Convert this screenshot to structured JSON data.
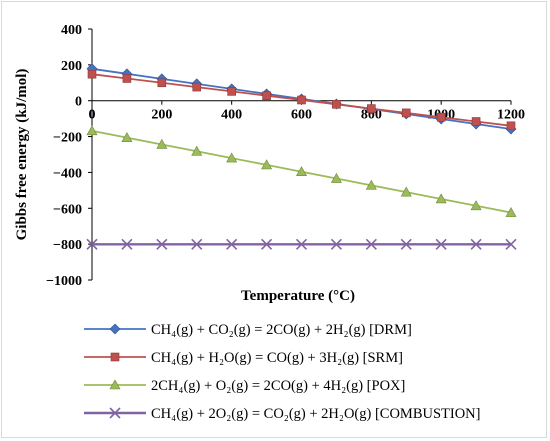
{
  "chart_data": {
    "type": "line",
    "title": "",
    "xlabel": "Temperature (°C)",
    "ylabel": "Gibbs free energy (kJ/mol)",
    "xlim": [
      0,
      1200
    ],
    "ylim": [
      -1000,
      400
    ],
    "x_ticks": [
      "0",
      "200",
      "400",
      "600",
      "800",
      "1000",
      "1200"
    ],
    "y_ticks": [
      "400",
      "200",
      "0",
      "−200",
      "−400",
      "−600",
      "−800",
      "−1000"
    ],
    "grid": false,
    "legend_position": "bottom",
    "x": [
      0,
      100,
      200,
      300,
      400,
      500,
      600,
      700,
      800,
      900,
      1000,
      1100,
      1200
    ],
    "series": [
      {
        "name": "CH₄(g) + CO₂(g) = 2CO(g) + 2H₂(g) [DRM]",
        "color": "#4472c4",
        "marker": "diamond",
        "values": [
          178,
          150,
          122,
          94,
          66,
          38,
          10,
          -18,
          -46,
          -74,
          -102,
          -130,
          -158
        ]
      },
      {
        "name": "CH₄(g) + H₂O(g) = CO(g) + 3H₂(g) [SRM]",
        "color": "#c0504d",
        "marker": "square",
        "values": [
          148,
          124,
          100,
          76,
          52,
          28,
          4,
          -20,
          -44,
          -68,
          -92,
          -116,
          -140
        ]
      },
      {
        "name": "2CH₄(g) + O₂(g) = 2CO(g) + 4H₂(g) [POX]",
        "color": "#9bbb59",
        "marker": "triangle",
        "values": [
          -168,
          -206,
          -244,
          -282,
          -320,
          -358,
          -396,
          -434,
          -472,
          -510,
          -548,
          -586,
          -624
        ]
      },
      {
        "name": "CH₄(g) + 2O₂(g) = CO₂(g) + 2H₂O(g) [COMBUSTION]",
        "color": "#8064a2",
        "marker": "x",
        "values": [
          -801,
          -801,
          -801,
          -801,
          -801,
          -801,
          -801,
          -801,
          -801,
          -801,
          -801,
          -801,
          -801
        ]
      }
    ]
  }
}
